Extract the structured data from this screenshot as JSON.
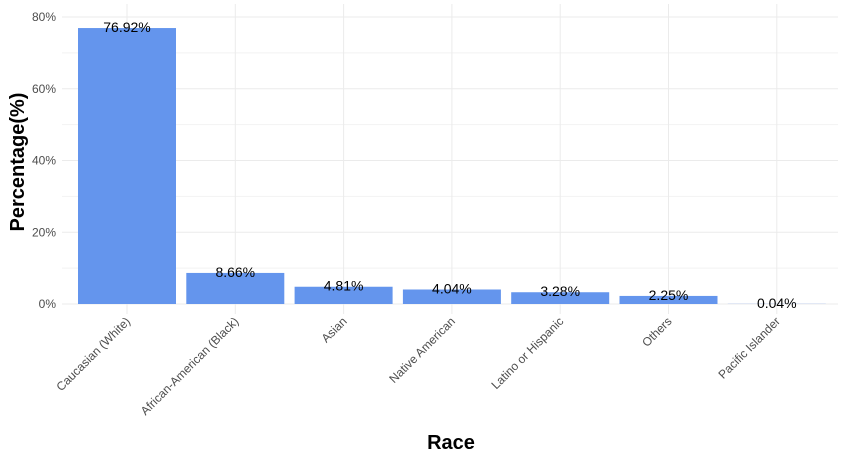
{
  "chart_data": {
    "type": "bar",
    "xlabel": "Race",
    "ylabel": "Percentage(%)",
    "categories": [
      "Caucasian (White)",
      "African-American (Black)",
      "Asian",
      "Native American",
      "Latino or Hispanic",
      "Others",
      "Pacific Islander"
    ],
    "values": [
      76.92,
      8.66,
      4.81,
      4.04,
      3.28,
      2.25,
      0.04
    ],
    "data_labels": [
      "76.92%",
      "8.66%",
      "4.81%",
      "4.04%",
      "3.28%",
      "2.25%",
      "0.04%"
    ],
    "yticks": [
      0,
      20,
      40,
      60,
      80
    ],
    "ytick_labels": [
      "0%",
      "20%",
      "40%",
      "60%",
      "80%"
    ],
    "ylim": [
      0,
      80
    ],
    "grid": true,
    "legend": "none",
    "bar_color": "#6495ED"
  }
}
